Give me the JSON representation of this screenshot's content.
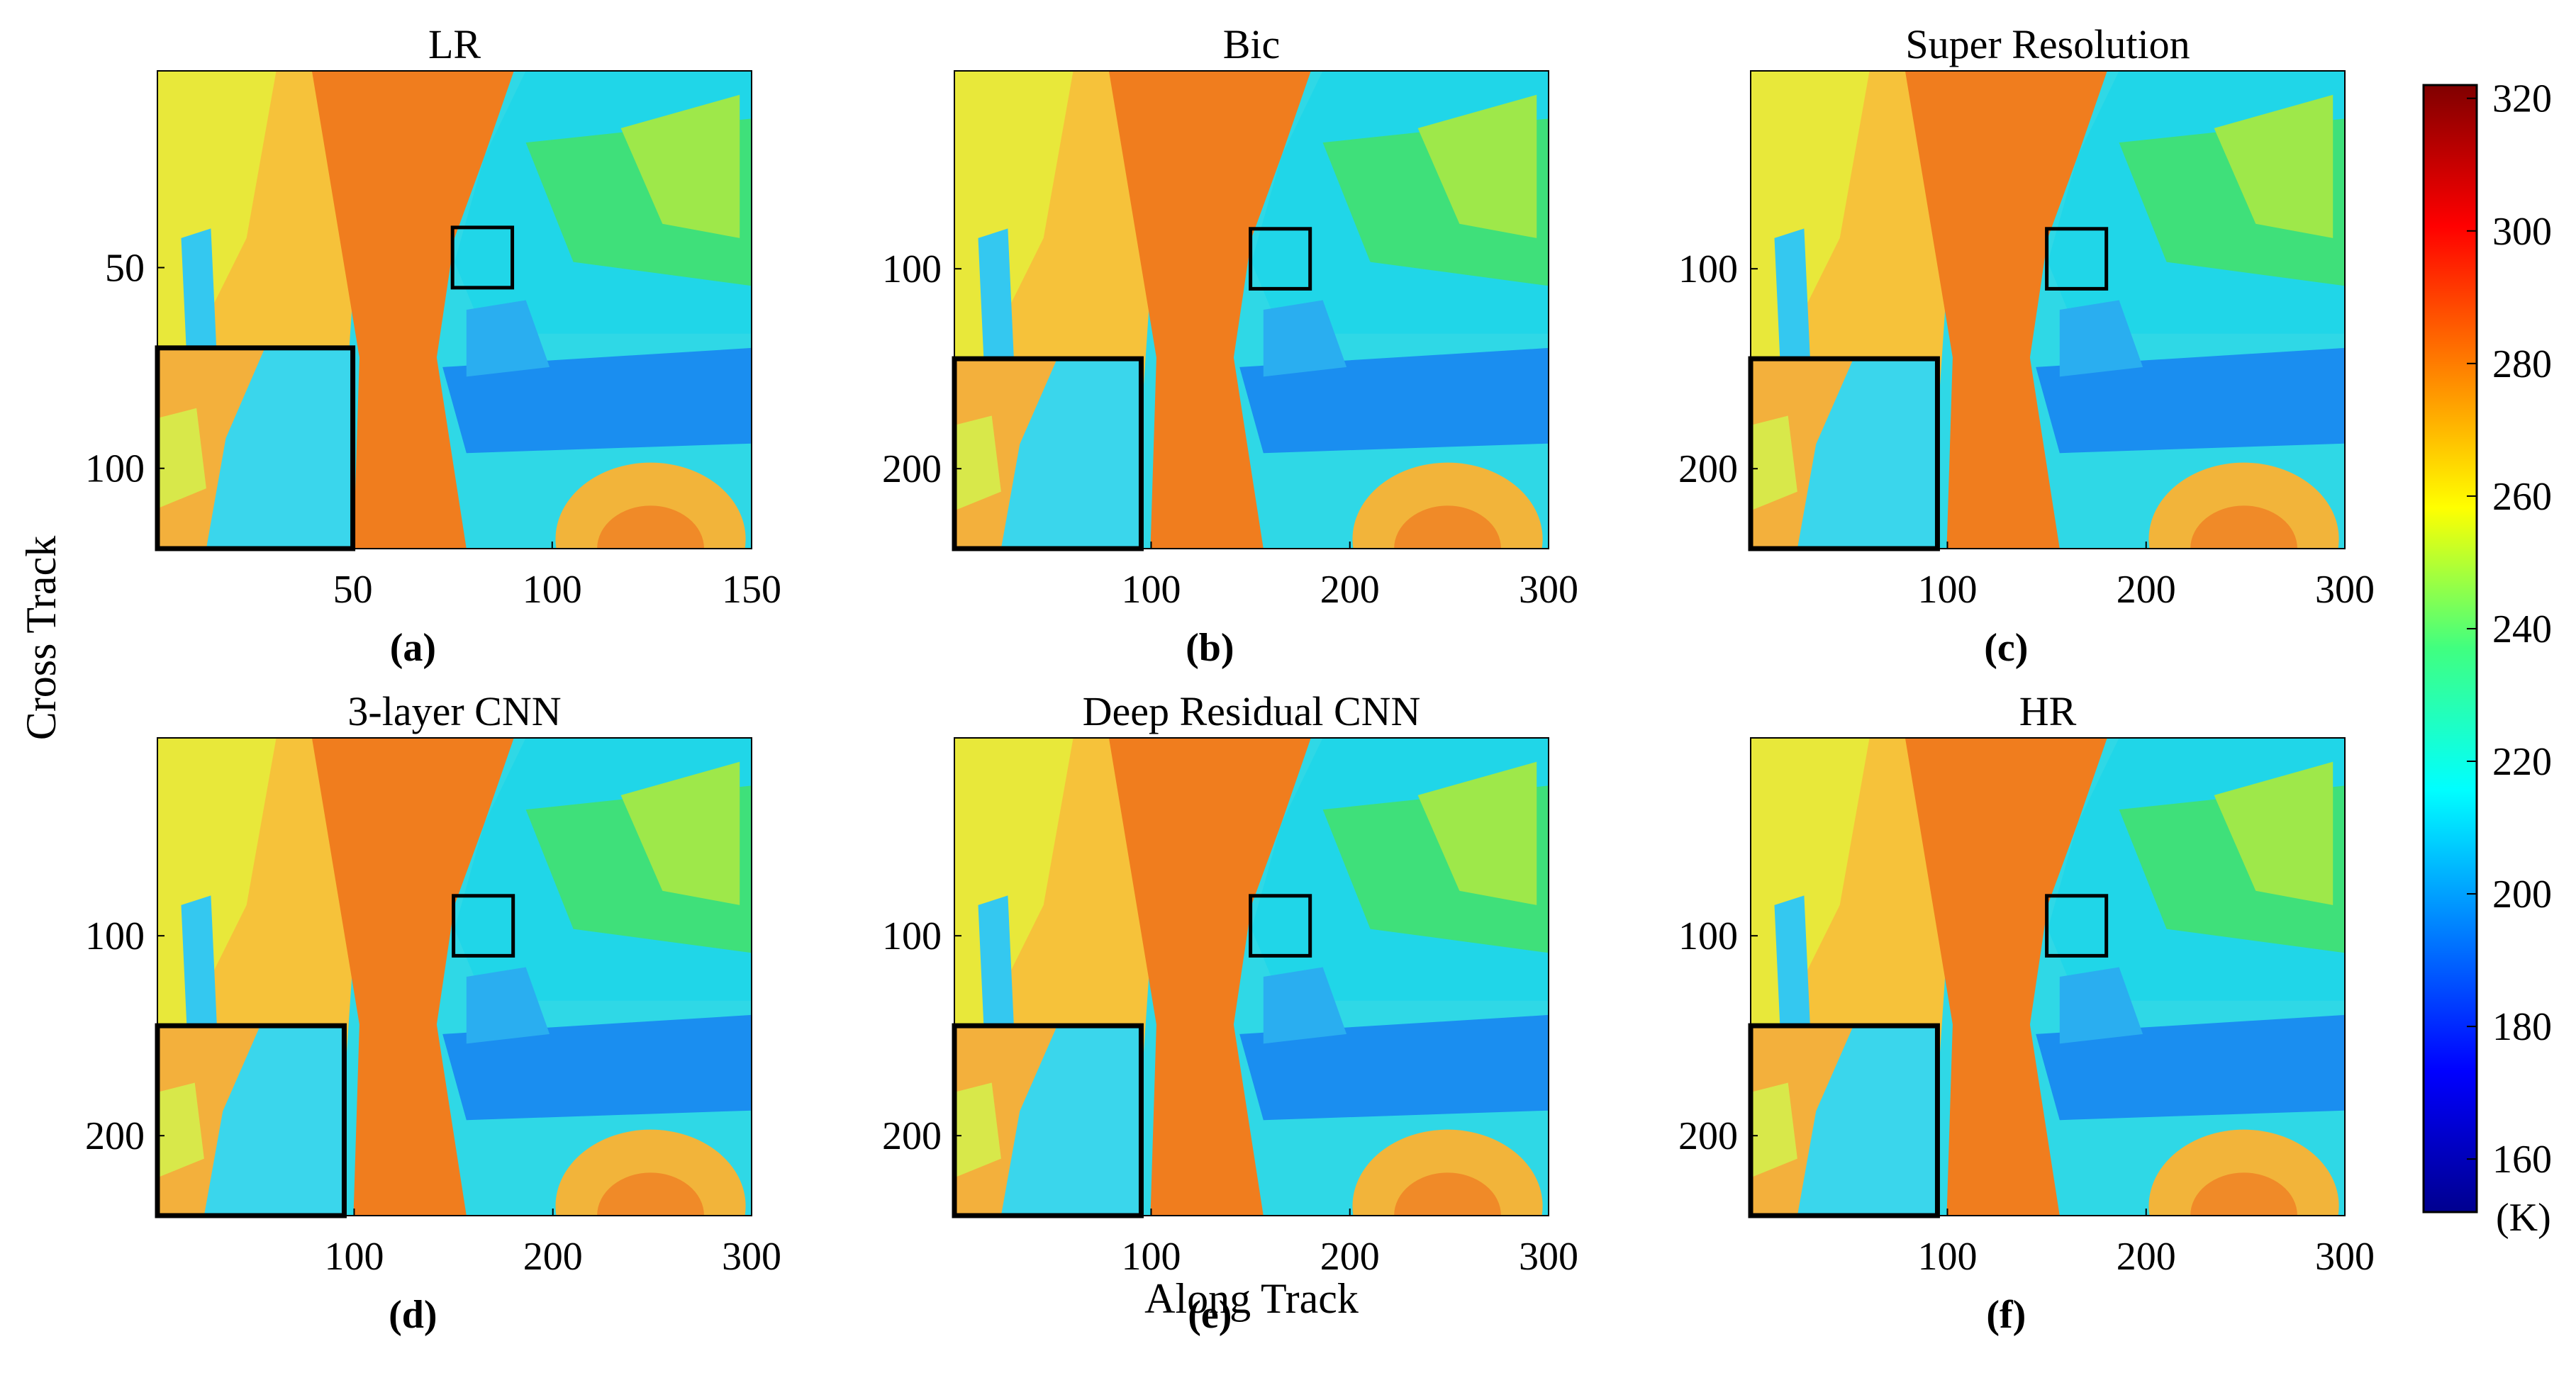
{
  "figure": {
    "ylabel": "Cross Track",
    "xlabel": "Along Track"
  },
  "colorbar": {
    "ticks": [
      160,
      180,
      200,
      220,
      240,
      260,
      280,
      300,
      320
    ],
    "unit": "(K)",
    "range": [
      152,
      322
    ],
    "colormap": "jet"
  },
  "chart_data": [
    {
      "type": "heatmap",
      "id": "a",
      "title": "LR",
      "label": "(a)",
      "x_ticks": [
        50,
        100,
        150
      ],
      "y_ticks": [
        50,
        100
      ],
      "xlim": [
        1,
        150
      ],
      "ylim": [
        1,
        120
      ],
      "zoom_box": {
        "x": [
          75,
          90
        ],
        "y": [
          40,
          55
        ]
      },
      "inset_extent": {
        "x": [
          1,
          50
        ],
        "y": [
          70,
          120
        ]
      }
    },
    {
      "type": "heatmap",
      "id": "b",
      "title": "Bic",
      "label": "(b)",
      "x_ticks": [
        100,
        200,
        300
      ],
      "y_ticks": [
        100,
        200
      ],
      "xlim": [
        1,
        300
      ],
      "ylim": [
        1,
        240
      ],
      "zoom_box": {
        "x": [
          150,
          180
        ],
        "y": [
          80,
          110
        ]
      },
      "inset_extent": {
        "x": [
          1,
          95
        ],
        "y": [
          145,
          240
        ]
      }
    },
    {
      "type": "heatmap",
      "id": "c",
      "title": "Super Resolution",
      "label": "(c)",
      "x_ticks": [
        100,
        200,
        300
      ],
      "y_ticks": [
        100,
        200
      ],
      "xlim": [
        1,
        300
      ],
      "ylim": [
        1,
        240
      ],
      "zoom_box": {
        "x": [
          150,
          180
        ],
        "y": [
          80,
          110
        ]
      },
      "inset_extent": {
        "x": [
          1,
          95
        ],
        "y": [
          145,
          240
        ]
      }
    },
    {
      "type": "heatmap",
      "id": "d",
      "title": "3-layer CNN",
      "label": "(d)",
      "x_ticks": [
        100,
        200,
        300
      ],
      "y_ticks": [
        100,
        200
      ],
      "xlim": [
        1,
        300
      ],
      "ylim": [
        1,
        240
      ],
      "zoom_box": {
        "x": [
          150,
          180
        ],
        "y": [
          80,
          110
        ]
      },
      "inset_extent": {
        "x": [
          1,
          95
        ],
        "y": [
          145,
          240
        ]
      }
    },
    {
      "type": "heatmap",
      "id": "e",
      "title": "Deep Residual CNN",
      "label": "(e)",
      "x_ticks": [
        100,
        200,
        300
      ],
      "y_ticks": [
        100,
        200
      ],
      "xlim": [
        1,
        300
      ],
      "ylim": [
        1,
        240
      ],
      "zoom_box": {
        "x": [
          150,
          180
        ],
        "y": [
          80,
          110
        ]
      },
      "inset_extent": {
        "x": [
          1,
          95
        ],
        "y": [
          145,
          240
        ]
      }
    },
    {
      "type": "heatmap",
      "id": "f",
      "title": "HR",
      "label": "(f)",
      "x_ticks": [
        100,
        200,
        300
      ],
      "y_ticks": [
        100,
        200
      ],
      "xlim": [
        1,
        300
      ],
      "ylim": [
        1,
        240
      ],
      "zoom_box": {
        "x": [
          150,
          180
        ],
        "y": [
          80,
          110
        ]
      },
      "inset_extent": {
        "x": [
          1,
          95
        ],
        "y": [
          145,
          240
        ]
      }
    }
  ]
}
